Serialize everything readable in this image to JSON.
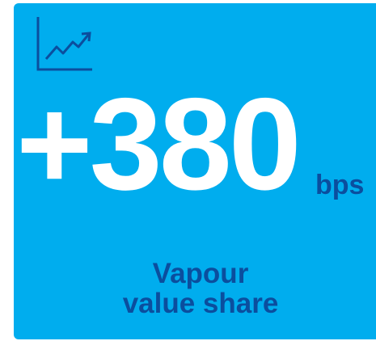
{
  "stat": {
    "value": "+380",
    "unit": "bps"
  },
  "label": [
    "Vapour",
    "value share"
  ]
}
